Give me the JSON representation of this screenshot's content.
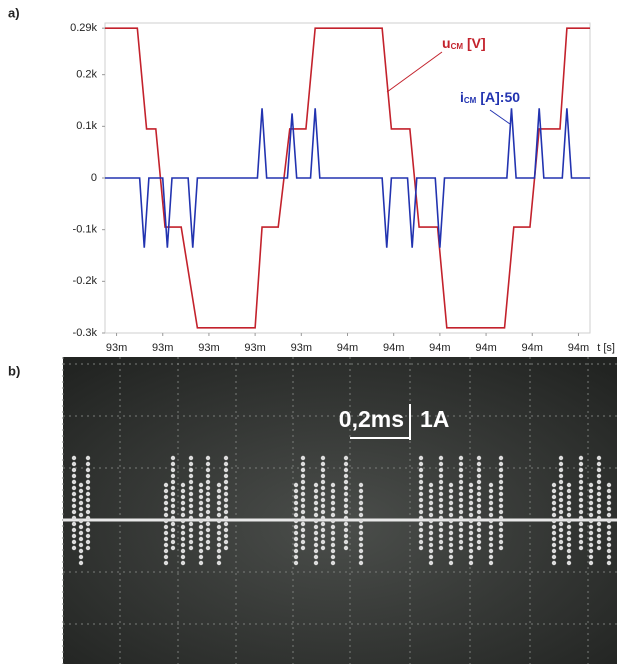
{
  "figure": {
    "panel_a_label": "a)",
    "panel_b_label": "b)",
    "scope_annotations": {
      "time_scale": "0,2ms",
      "current_scale": "1A"
    }
  },
  "chart_data": {
    "type": "line",
    "xlabel": "t [s]",
    "xlim": [
      0.09255,
      0.09465
    ],
    "xticks": [
      {
        "value": 0.0926,
        "label": "93m"
      },
      {
        "value": 0.0928,
        "label": "93m"
      },
      {
        "value": 0.093,
        "label": "93m"
      },
      {
        "value": 0.0932,
        "label": "93m"
      },
      {
        "value": 0.0934,
        "label": "93m"
      },
      {
        "value": 0.0936,
        "label": "94m"
      },
      {
        "value": 0.0938,
        "label": "94m"
      },
      {
        "value": 0.094,
        "label": "94m"
      },
      {
        "value": 0.0942,
        "label": "94m"
      },
      {
        "value": 0.0944,
        "label": "94m"
      },
      {
        "value": 0.0946,
        "label": "94m"
      }
    ],
    "ylim": [
      -300,
      300
    ],
    "yticks": [
      {
        "value": 290,
        "label": "0.29k"
      },
      {
        "value": 200,
        "label": "0.2k"
      },
      {
        "value": 100,
        "label": "0.1k"
      },
      0,
      {
        "value": -100,
        "label": "-0.1k"
      },
      {
        "value": -200,
        "label": "-0.2k"
      },
      {
        "value": -300,
        "label": "-0.3k"
      }
    ],
    "series": [
      {
        "label": {
          "main": "u",
          "sub": "CM",
          "suffix": "[V]"
        },
        "color": "#c3222c",
        "x": [
          0.09255,
          0.09269,
          0.09273,
          0.09277,
          0.09281,
          0.09288,
          0.09295,
          0.0932,
          0.09323,
          0.0933,
          0.09335,
          0.09342,
          0.09346,
          0.09375,
          0.09379,
          0.09387,
          0.09391,
          0.09399,
          0.09403,
          0.09428,
          0.09432,
          0.09439,
          0.09443,
          0.09452,
          0.09455,
          0.09465
        ],
        "values": [
          290,
          290,
          95,
          95,
          -95,
          -95,
          -290,
          -290,
          -95,
          -95,
          95,
          95,
          290,
          290,
          95,
          95,
          -95,
          -95,
          -290,
          -290,
          -95,
          -95,
          95,
          95,
          290,
          290
        ]
      },
      {
        "label": {
          "main": "i",
          "sub": "CM",
          "suffix": "[A]:50"
        },
        "color": "#2233b0",
        "x": [
          0.09255,
          0.0927,
          0.09272,
          0.09274,
          0.0928,
          0.09282,
          0.09284,
          0.09291,
          0.09293,
          0.09295,
          0.09321,
          0.09323,
          0.09325,
          0.09334,
          0.09336,
          0.09338,
          0.09344,
          0.09346,
          0.09348,
          0.09375,
          0.09377,
          0.09379,
          0.09386,
          0.09388,
          0.0939,
          0.09398,
          0.094,
          0.09402,
          0.09429,
          0.09431,
          0.09433,
          0.09441,
          0.09443,
          0.09445,
          0.09453,
          0.09455,
          0.09457,
          0.09465
        ],
        "values": [
          0,
          0,
          -135,
          0,
          0,
          -135,
          0,
          0,
          -135,
          0,
          0,
          135,
          0,
          0,
          125,
          0,
          0,
          135,
          0,
          0,
          -135,
          0,
          0,
          -135,
          0,
          0,
          -135,
          0,
          0,
          135,
          0,
          0,
          135,
          0,
          0,
          135,
          0,
          0
        ]
      }
    ]
  }
}
